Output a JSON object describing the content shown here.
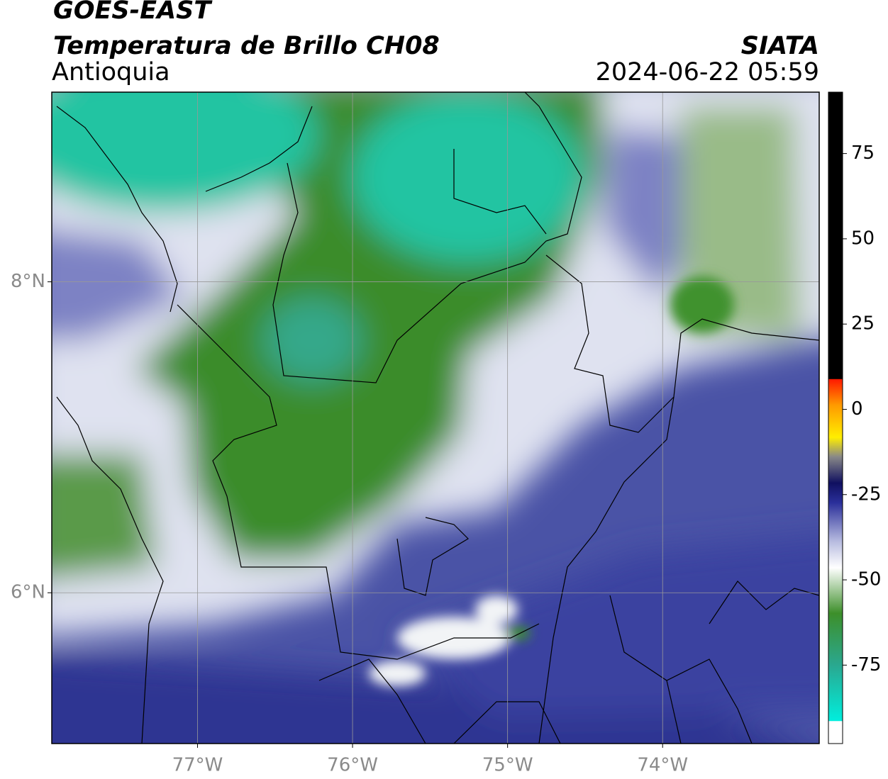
{
  "header": {
    "title": "GOES-EAST",
    "subtitle": "Temperatura de Brillo CH08",
    "region": "Antioquia",
    "source": "SIATA",
    "datetime": "2024-06-22 05:59"
  },
  "map": {
    "xlim": [
      -77.94,
      -72.99
    ],
    "ylim": [
      5.03,
      9.22
    ],
    "xticks": [
      {
        "value": -77,
        "label": "77°W"
      },
      {
        "value": -76,
        "label": "76°W"
      },
      {
        "value": -75,
        "label": "75°W"
      },
      {
        "value": -74,
        "label": "74°W"
      }
    ],
    "yticks": [
      {
        "value": 8,
        "label": "8°N"
      },
      {
        "value": 6,
        "label": "6°N"
      }
    ],
    "grid": true
  },
  "colorbar": {
    "lim": [
      -98,
      93
    ],
    "ticks": [
      75,
      50,
      25,
      0,
      -25,
      -50,
      -75
    ]
  }
}
